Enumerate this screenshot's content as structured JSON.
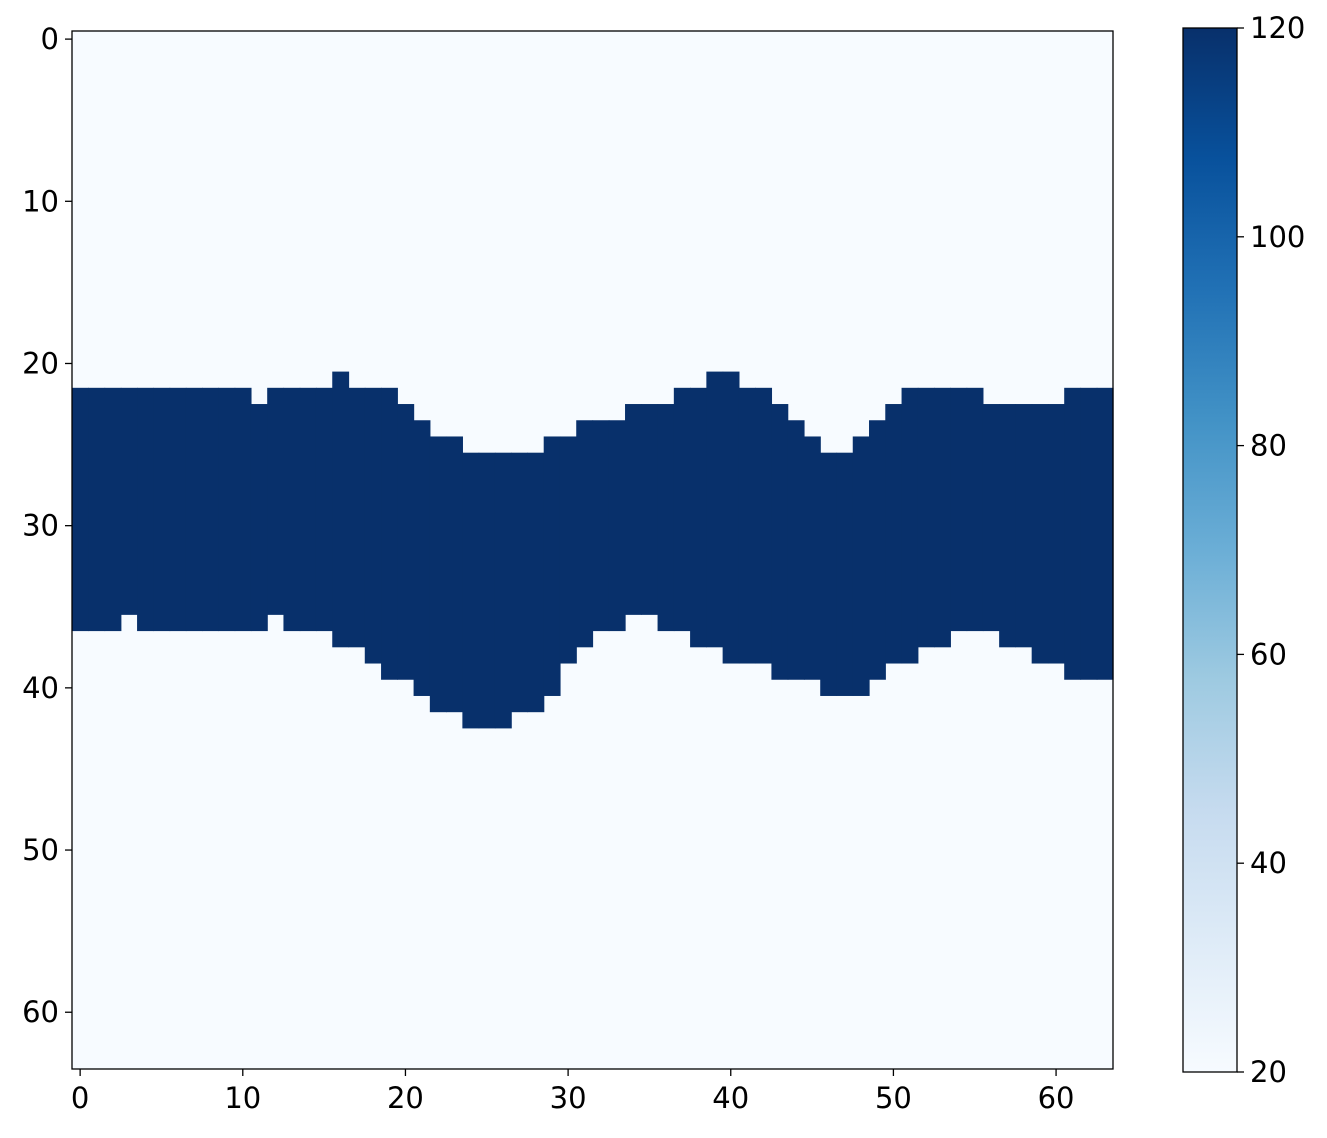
{
  "chart_data": {
    "type": "heatmap",
    "title": "",
    "xlabel": "",
    "ylabel": "",
    "grid_size": [
      64,
      64
    ],
    "xlim": [
      -0.5,
      63.5
    ],
    "ylim": [
      63.5,
      -0.5
    ],
    "x_ticks": [
      0,
      10,
      20,
      30,
      40,
      50,
      60
    ],
    "y_ticks": [
      0,
      10,
      20,
      30,
      40,
      50,
      60
    ],
    "background_value": 20,
    "band_value": 120,
    "band_top_row": [
      22,
      22,
      22,
      22,
      22,
      22,
      22,
      22,
      22,
      22,
      22,
      23,
      22,
      22,
      22,
      22,
      21,
      22,
      22,
      22,
      23,
      24,
      25,
      25,
      26,
      26,
      26,
      26,
      26,
      25,
      25,
      24,
      24,
      24,
      23,
      23,
      23,
      22,
      22,
      21,
      21,
      22,
      22,
      23,
      24,
      25,
      26,
      26,
      25,
      24,
      23,
      22,
      22,
      22,
      22,
      22,
      23,
      23,
      23,
      23,
      23,
      22,
      22,
      22
    ],
    "band_bottom_row": [
      36,
      36,
      36,
      35,
      36,
      36,
      36,
      36,
      36,
      36,
      36,
      36,
      35,
      36,
      36,
      36,
      37,
      37,
      38,
      39,
      39,
      40,
      41,
      41,
      42,
      42,
      42,
      41,
      41,
      40,
      38,
      37,
      36,
      36,
      35,
      35,
      36,
      36,
      37,
      37,
      38,
      38,
      38,
      39,
      39,
      39,
      40,
      40,
      40,
      39,
      38,
      38,
      37,
      37,
      36,
      36,
      36,
      37,
      37,
      38,
      38,
      39,
      39,
      39
    ],
    "colorbar": {
      "colormap": "Blues",
      "min": 20,
      "max": 120,
      "ticks": [
        20,
        40,
        60,
        80,
        100,
        120
      ],
      "colors": [
        "#f7fbff",
        "#deebf7",
        "#c6dbef",
        "#9ecae1",
        "#6baed6",
        "#4292c6",
        "#2171b5",
        "#08519c",
        "#08306b"
      ]
    }
  }
}
